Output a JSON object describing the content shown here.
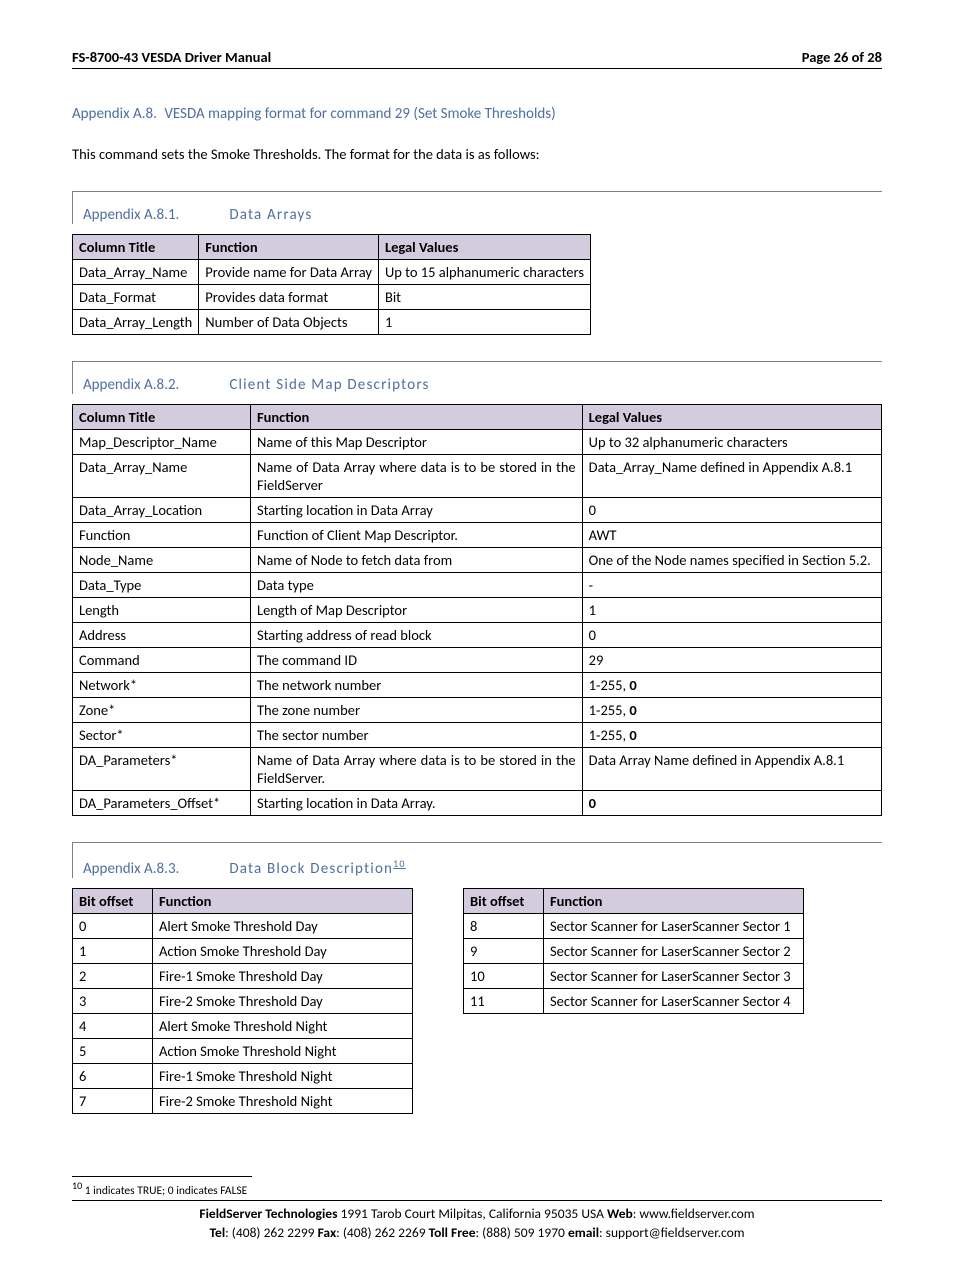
{
  "header": {
    "left": "FS-8700-43 VESDA Driver Manual",
    "right": "Page 26 of 28"
  },
  "section": {
    "number": "Appendix A.8.",
    "title": "VESDA mapping format for command 29 (Set Smoke Thresholds)"
  },
  "intro": "This command sets the Smoke Thresholds.  The format for the data is as follows:",
  "sub1": {
    "number": "Appendix A.8.1.",
    "title": "Data Arrays",
    "columns": [
      "Column Title",
      "Function",
      "Legal Values"
    ],
    "rows": [
      [
        "Data_Array_Name",
        "Provide name for Data Array",
        "Up to 15 alphanumeric characters"
      ],
      [
        "Data_Format",
        "Provides data format",
        "Bit"
      ],
      [
        "Data_Array_Length",
        "Number of Data Objects",
        "1"
      ]
    ],
    "col_widths": [
      "",
      "",
      ""
    ]
  },
  "sub2": {
    "number": "Appendix A.8.2.",
    "title": "Client Side Map Descriptors",
    "columns": [
      "Column Title",
      "Function",
      "Legal Values"
    ],
    "rows": [
      {
        "c0": "Map_Descriptor_Name",
        "c1": "Name of this Map Descriptor",
        "c2": "Up to 32 alphanumeric characters",
        "j1": false,
        "j2": false
      },
      {
        "c0": "Data_Array_Name",
        "c1": "Name of Data Array where data is to be stored in the FieldServer",
        "c2": "Data_Array_Name defined in Appendix A.8.1",
        "j1": true,
        "j2": true
      },
      {
        "c0": "Data_Array_Location",
        "c1": "Starting location in Data Array",
        "c2": "0",
        "j1": false,
        "j2": false
      },
      {
        "c0": "Function",
        "c1": "Function of Client Map Descriptor.",
        "c2": "AWT",
        "j1": false,
        "j2": false
      },
      {
        "c0": "Node_Name",
        "c1": "Name of Node to fetch data from",
        "c2": "One of the Node names specified in Section 5.2.",
        "j1": false,
        "j2": true
      },
      {
        "c0": "Data_Type",
        "c1": "Data type",
        "c2": "-",
        "j1": false,
        "j2": false
      },
      {
        "c0": "Length",
        "c1": "Length of Map Descriptor",
        "c2": "1",
        "j1": false,
        "j2": false
      },
      {
        "c0": "Address",
        "c1": "Starting address of read block",
        "c2": "0",
        "j1": false,
        "j2": false
      },
      {
        "c0": "Command",
        "c1": "The command ID",
        "c2": "29",
        "j1": false,
        "j2": false
      },
      {
        "c0": "Network*",
        "c1": "The network number",
        "c2": "1-255, <b>0</b>",
        "j1": false,
        "j2": false
      },
      {
        "c0": "Zone*",
        "c1": "The zone number",
        "c2": "1-255, <b>0</b>",
        "j1": false,
        "j2": false
      },
      {
        "c0": "Sector*",
        "c1": "The sector number",
        "c2": "1-255, <b>0</b>",
        "j1": false,
        "j2": false
      },
      {
        "c0": "DA_Parameters*",
        "c1": "Name of Data Array where data is to be stored in the FieldServer.",
        "c2": "Data Array Name defined in Appendix A.8.1",
        "j1": true,
        "j2": true
      },
      {
        "c0": "DA_Parameters_Offset*",
        "c1": "Starting location in Data Array.",
        "c2": "<b>0</b>",
        "j1": false,
        "j2": false
      }
    ]
  },
  "sub3": {
    "number": "Appendix A.8.3.",
    "title": "Data Block Description",
    "footref": "10",
    "columnsA": [
      "Bit offset",
      "Function"
    ],
    "rowsA": [
      [
        "0",
        "Alert Smoke Threshold Day"
      ],
      [
        "1",
        "Action Smoke Threshold Day"
      ],
      [
        "2",
        "Fire-1 Smoke Threshold Day"
      ],
      [
        "3",
        "Fire-2 Smoke Threshold Day"
      ],
      [
        "4",
        "Alert Smoke Threshold Night"
      ],
      [
        "5",
        "Action Smoke Threshold Night"
      ],
      [
        "6",
        "Fire-1 Smoke Threshold Night"
      ],
      [
        "7",
        "Fire-2 Smoke Threshold Night"
      ]
    ],
    "columnsB": [
      "Bit offset",
      "Function"
    ],
    "rowsB": [
      [
        "8",
        "Sector Scanner for LaserScanner Sector 1"
      ],
      [
        "9",
        "Sector Scanner for LaserScanner Sector 2"
      ],
      [
        "10",
        "Sector Scanner for LaserScanner Sector 3"
      ],
      [
        "11",
        "Sector Scanner for LaserScanner Sector 4"
      ]
    ]
  },
  "footnote": {
    "num": "10",
    "text": " 1 indicates TRUE; 0 indicates FALSE"
  },
  "footer": {
    "company": "FieldServer Technologies",
    "address": " 1991 Tarob Court Milpitas, California 95035 USA   ",
    "web_label": "Web",
    "web": ": www.fieldserver.com",
    "tel_label": "Tel",
    "tel": ": (408) 262 2299   ",
    "fax_label": "Fax",
    "fax": ": (408) 262 2269   ",
    "toll_label": "Toll Free",
    "toll": ": (888) 509 1970   ",
    "email_label": "email",
    "email": ": support@fieldserver.com"
  },
  "style": {
    "header_bg": "#d3ccde",
    "accent_color": "#4f6fa0",
    "border_color": "#000000"
  }
}
